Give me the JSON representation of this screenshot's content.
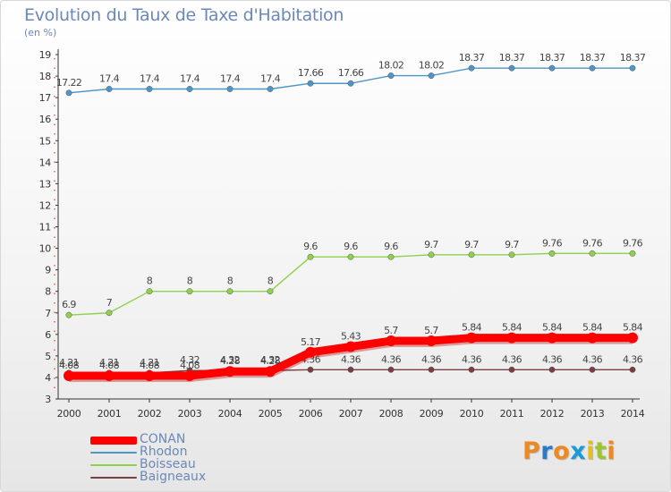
{
  "title": "Evolution du Taux de Taxe d'Habitation",
  "subtitle": "(en %)",
  "logo": "Proxiti",
  "colors": {
    "logo": [
      "#ee8822",
      "#2a7bc4",
      "#ee8822",
      "#1a9bd7",
      "#e8c012",
      "#9cc530",
      "#ee8822"
    ]
  },
  "chart_data": {
    "type": "line",
    "x": [
      "2000",
      "2001",
      "2002",
      "2003",
      "2004",
      "2005",
      "2006",
      "2007",
      "2008",
      "2009",
      "2010",
      "2011",
      "2012",
      "2013",
      "2014"
    ],
    "ylim": [
      3,
      19
    ],
    "yticks": [
      "3",
      "4",
      "5",
      "6",
      "7",
      "8",
      "9",
      "10",
      "11",
      "12",
      "13",
      "14",
      "15",
      "16",
      "17",
      "18",
      "19"
    ],
    "grid": false,
    "legend_placement": "bottom-left",
    "series": [
      {
        "name": "CONAN",
        "color": "#ff0000",
        "thick": true,
        "values": [
          4.08,
          4.08,
          4.08,
          4.08,
          4.28,
          4.28,
          5.17,
          5.43,
          5.7,
          5.7,
          5.84,
          5.84,
          5.84,
          5.84,
          5.84
        ],
        "labels": [
          "4.08",
          "4.08",
          "4.08",
          "4.08",
          "4.28",
          "4.28",
          "5.17",
          "5.43",
          "5.7",
          "5.7",
          "5.84",
          "5.84",
          "5.84",
          "5.84",
          "5.84"
        ]
      },
      {
        "name": "Rhodon",
        "color": "#4f96c7",
        "thick": false,
        "values": [
          17.22,
          17.4,
          17.4,
          17.4,
          17.4,
          17.4,
          17.66,
          17.66,
          18.02,
          18.02,
          18.37,
          18.37,
          18.37,
          18.37,
          18.37
        ],
        "labels": [
          "17.22",
          "17.4",
          "17.4",
          "17.4",
          "17.4",
          "17.4",
          "17.66",
          "17.66",
          "18.02",
          "18.02",
          "18.37",
          "18.37",
          "18.37",
          "18.37",
          "18.37"
        ]
      },
      {
        "name": "Boisseau",
        "color": "#8fd14f",
        "thick": false,
        "values": [
          6.9,
          7,
          8,
          8,
          8,
          8,
          9.6,
          9.6,
          9.6,
          9.7,
          9.7,
          9.7,
          9.76,
          9.76,
          9.76
        ],
        "labels": [
          "6.9",
          "7",
          "8",
          "8",
          "8",
          "8",
          "9.6",
          "9.6",
          "9.6",
          "9.7",
          "9.7",
          "9.7",
          "9.76",
          "9.76",
          "9.76"
        ]
      },
      {
        "name": "Baigneaux",
        "color": "#7a3e3e",
        "thick": false,
        "values": [
          4.21,
          4.21,
          4.21,
          4.32,
          4.32,
          4.32,
          4.36,
          4.36,
          4.36,
          4.36,
          4.36,
          4.36,
          4.36,
          4.36,
          4.36
        ],
        "labels": [
          "4.21",
          "4.21",
          "4.21",
          "4.32",
          "4.32",
          "4.32",
          "4.36",
          "4.36",
          "4.36",
          "4.36",
          "4.36",
          "4.36",
          "4.36",
          "4.36",
          "4.36"
        ]
      }
    ]
  }
}
